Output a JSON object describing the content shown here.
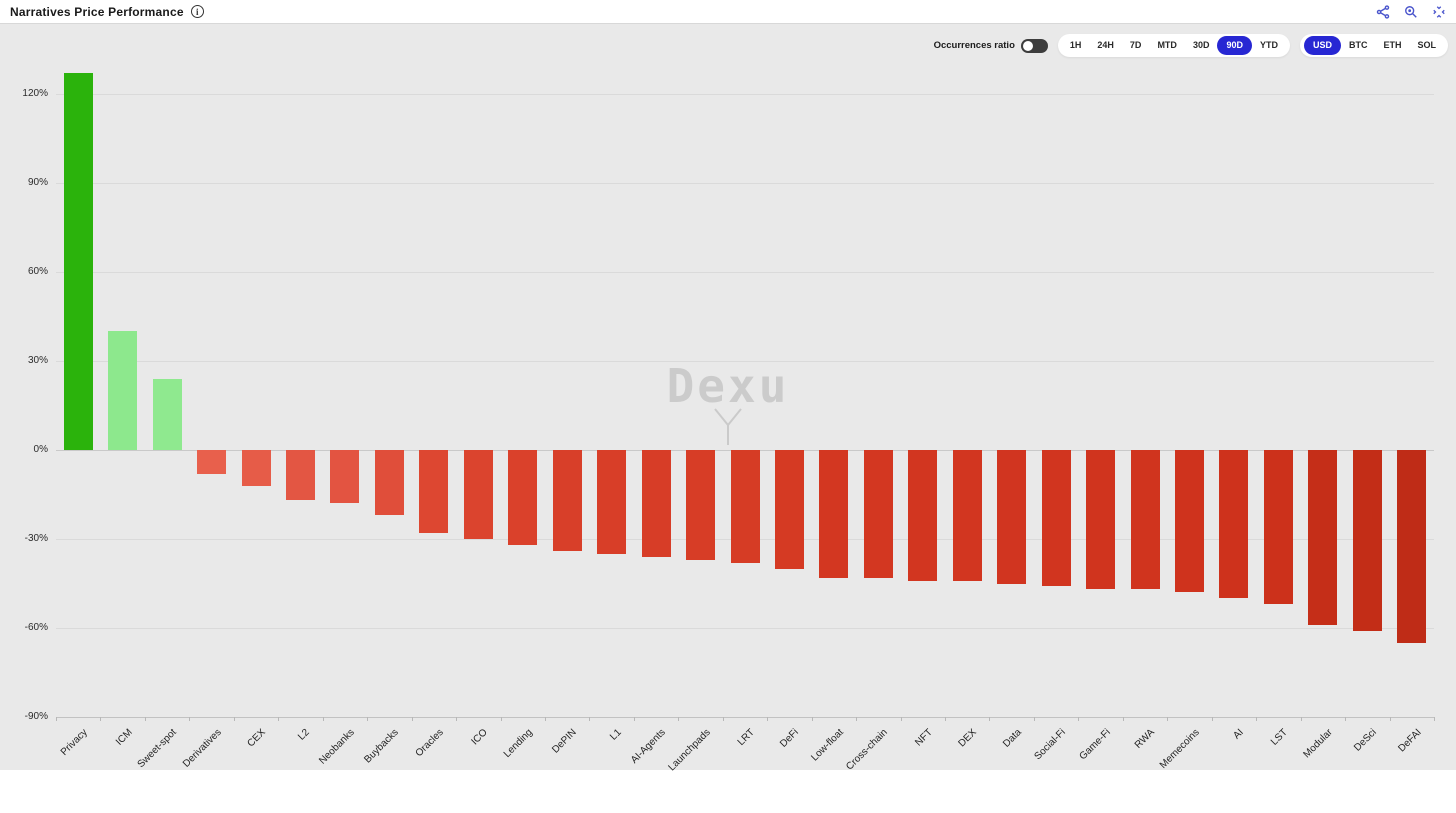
{
  "header": {
    "title": "Narratives Price Performance"
  },
  "header_icons": {
    "share": "share-icon",
    "zoom": "zoom-icon",
    "fullscreen": "fullscreen-icon"
  },
  "toolbar": {
    "occurrences_label": "Occurrences ratio",
    "occurrences_toggle_state": "off",
    "time_ranges": [
      "1H",
      "24H",
      "7D",
      "MTD",
      "30D",
      "90D",
      "YTD"
    ],
    "active_time_range": "90D",
    "currencies": [
      "USD",
      "BTC",
      "ETH",
      "SOL"
    ],
    "active_currency": "USD",
    "active_pill_color": "#2727d3"
  },
  "watermark": "Dexu",
  "chart_data": {
    "type": "bar",
    "title": "Narratives Price Performance",
    "xlabel": "",
    "ylabel": "%",
    "ylim": [
      -94,
      131
    ],
    "yticks": [
      120,
      90,
      60,
      30,
      0,
      -30,
      -60,
      -90
    ],
    "ytick_suffix": "%",
    "grid": true,
    "legend": false,
    "categories": [
      "Privacy",
      "ICM",
      "Sweet-spot",
      "Derivatives",
      "CEX",
      "L2",
      "Neobanks",
      "Buybacks",
      "Oracles",
      "ICO",
      "Lending",
      "DePIN",
      "L1",
      "AI-Agents",
      "Launchpads",
      "LRT",
      "DeFi",
      "Low-float",
      "Cross-chain",
      "NFT",
      "DEX",
      "Data",
      "Social-Fi",
      "Game-Fi",
      "RWA",
      "Memecoins",
      "AI",
      "LST",
      "Modular",
      "DeSci",
      "DeFAI"
    ],
    "values": [
      127,
      40,
      24,
      -8,
      -12,
      -17,
      -18,
      -22,
      -28,
      -30,
      -32,
      -34,
      -35,
      -36,
      -37,
      -38,
      -40,
      -43,
      -43,
      -44,
      -44,
      -45,
      -46,
      -47,
      -47,
      -48,
      -50,
      -52,
      -59,
      -61,
      -65
    ],
    "colors": [
      "#2bb30c",
      "#8de88d",
      "#8fe98f",
      "#e8604c",
      "#e65c48",
      "#e35643",
      "#e35441",
      "#e04e3a",
      "#dd4731",
      "#db442e",
      "#da412b",
      "#d83f29",
      "#d83e28",
      "#d73d27",
      "#d73d26",
      "#d63c25",
      "#d53a23",
      "#d33721",
      "#d33721",
      "#d23620",
      "#d23620",
      "#d13520",
      "#d1351f",
      "#d0341e",
      "#d0341e",
      "#cf331d",
      "#ce321c",
      "#cc311b",
      "#c52e18",
      "#c32d17",
      "#bf2c17"
    ],
    "positive_colors": {
      "strong": "#2bb30c",
      "light": "#8de88d"
    },
    "negative_colors": {
      "light": "#e8604c",
      "dark": "#bf2c17"
    }
  }
}
